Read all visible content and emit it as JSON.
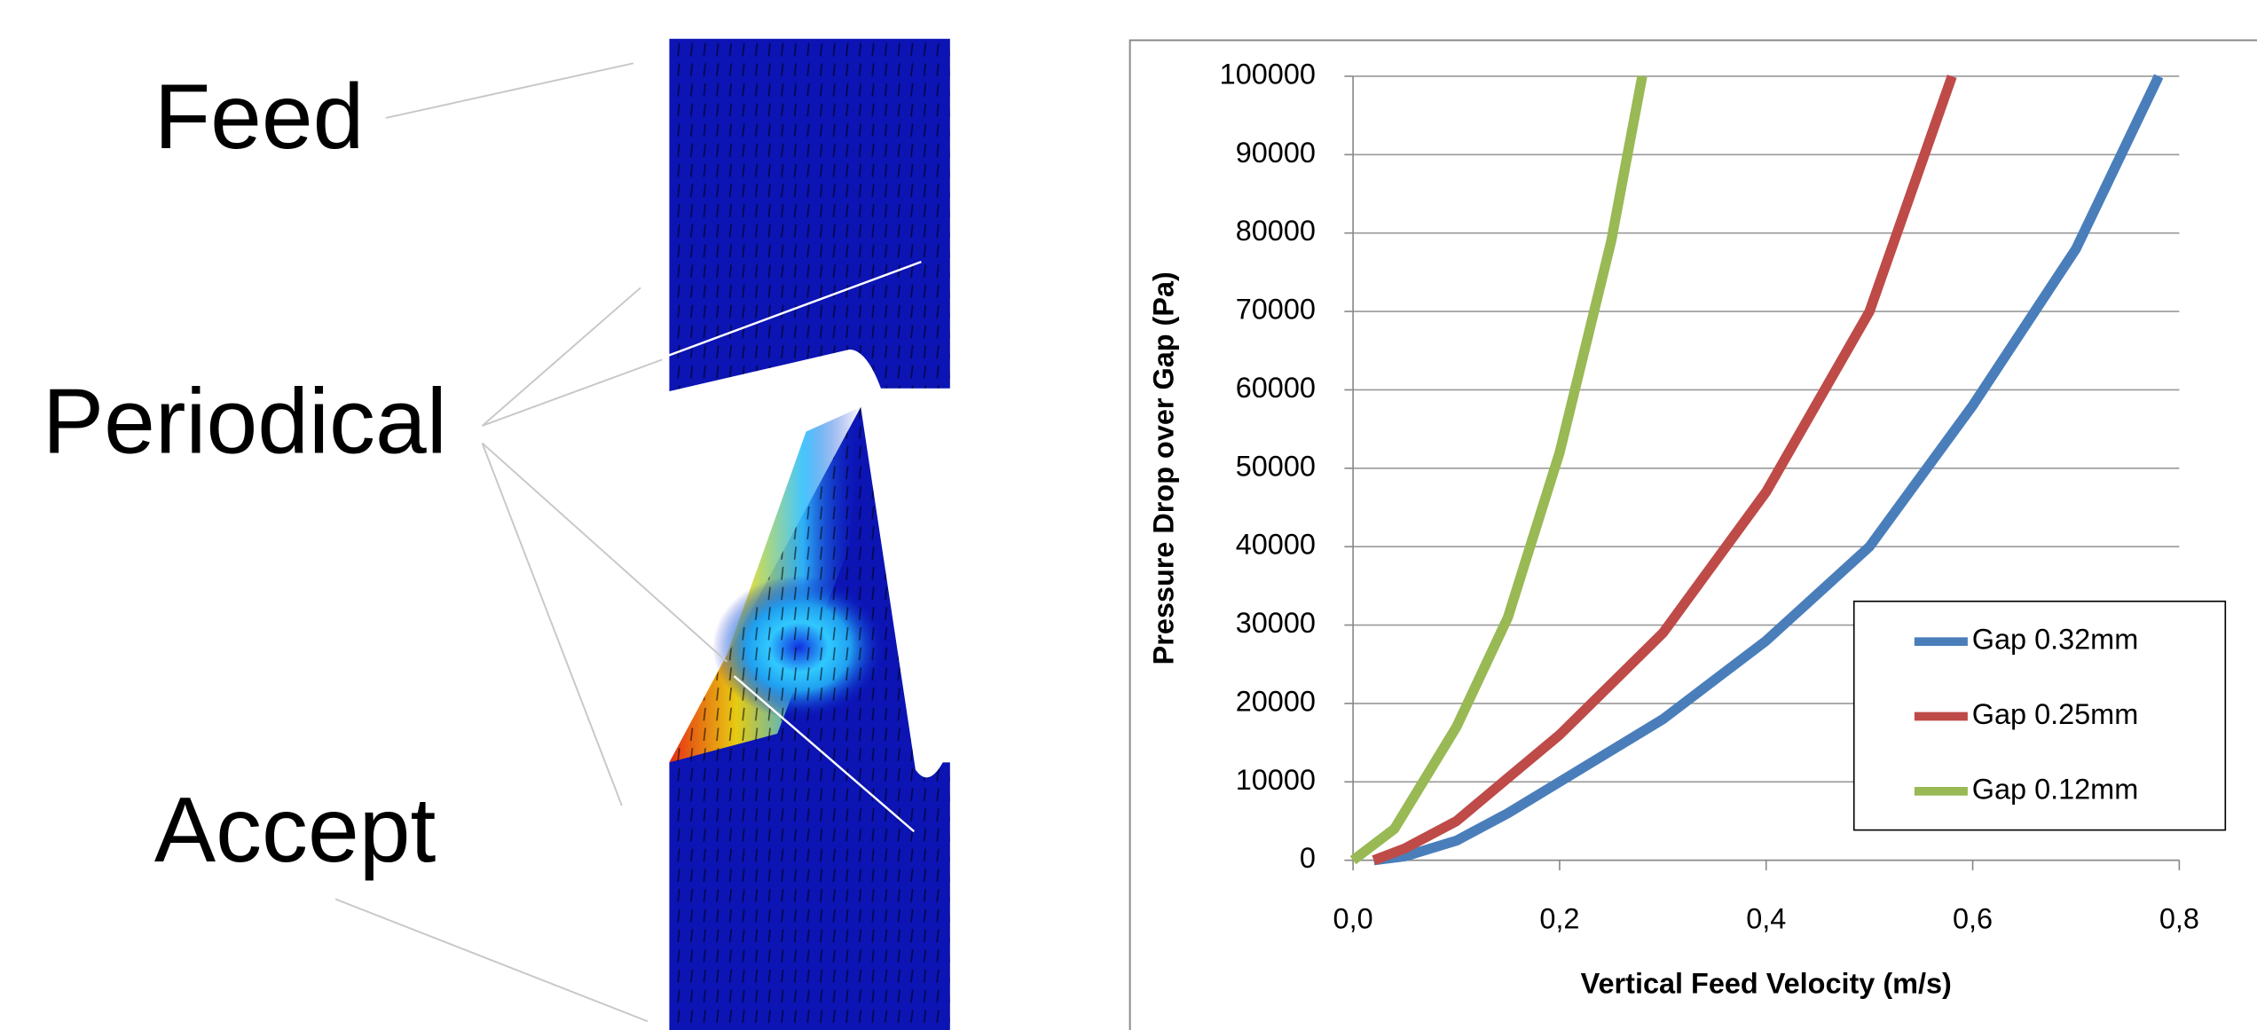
{
  "labels": [
    "Feed",
    "Periodical",
    "Accept"
  ],
  "chart_data": {
    "type": "line",
    "xlabel": "Vertical Feed Velocity (m/s)",
    "ylabel": "Pressure Drop over Gap (Pa)",
    "xlim": [
      0,
      0.8
    ],
    "xticks": [
      {
        "value": 0,
        "label": "0,0"
      },
      {
        "value": 0.2,
        "label": "0,2"
      },
      {
        "value": 0.4,
        "label": "0,4"
      },
      {
        "value": 0.6,
        "label": "0,6"
      },
      {
        "value": 0.8,
        "label": "0,8"
      }
    ],
    "ylim": [
      0,
      100000
    ],
    "yticks": [
      0,
      10000,
      20000,
      30000,
      40000,
      50000,
      60000,
      70000,
      80000,
      90000,
      100000
    ],
    "grid": true,
    "legend": "lower-right",
    "series": [
      {
        "name": "Gap 0.32mm",
        "color": "#4a7ebb",
        "x": [
          0.02,
          0.05,
          0.1,
          0.15,
          0.2,
          0.3,
          0.4,
          0.5,
          0.6,
          0.7,
          0.78
        ],
        "values": [
          0,
          500,
          2500,
          6000,
          10000,
          18000,
          28000,
          40000,
          58000,
          78000,
          100000
        ]
      },
      {
        "name": "Gap 0.25mm",
        "color": "#be4b48",
        "x": [
          0.02,
          0.05,
          0.1,
          0.15,
          0.2,
          0.3,
          0.4,
          0.5,
          0.58
        ],
        "values": [
          0,
          1500,
          5000,
          10500,
          16000,
          29000,
          47000,
          70000,
          100000
        ]
      },
      {
        "name": "Gap 0.12mm",
        "color": "#98b954",
        "x": [
          0,
          0.04,
          0.1,
          0.15,
          0.2,
          0.25,
          0.28
        ],
        "values": [
          0,
          4000,
          17000,
          31000,
          52000,
          79000,
          100000
        ]
      }
    ]
  }
}
